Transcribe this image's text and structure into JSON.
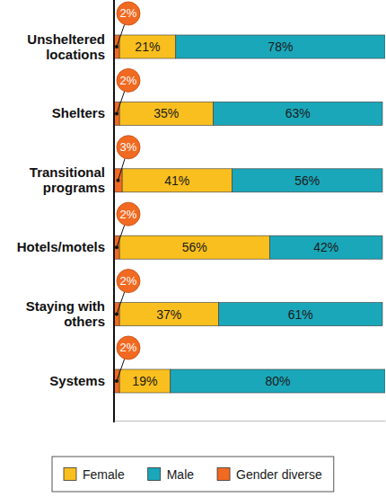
{
  "chart_data": {
    "type": "bar",
    "orientation": "horizontal",
    "stacked": true,
    "data_labels": true,
    "tick_labels": "y",
    "legend": "bottom",
    "categories": [
      "Unsheltered locations",
      "Shelters",
      "Transitional programs",
      "Hotels/motels",
      "Staying with others",
      "Systems"
    ],
    "xlim": [
      0,
      101
    ],
    "series": [
      {
        "name": "Female",
        "color": "#f9bf1e",
        "values": [
          21,
          35,
          41,
          56,
          37,
          19
        ],
        "value_labels": [
          "21%",
          "35%",
          "41%",
          "56%",
          "37%",
          "19%"
        ]
      },
      {
        "name": "Male",
        "color": "#1aa7b9",
        "values": [
          78,
          63,
          56,
          42,
          61,
          80
        ],
        "value_labels": [
          "78%",
          "63%",
          "56%",
          "42%",
          "61%",
          "80%"
        ]
      },
      {
        "name": "Gender diverse",
        "color": "#f26a21",
        "values": [
          2,
          2,
          3,
          2,
          2,
          2
        ],
        "value_labels": [
          "2%",
          "2%",
          "3%",
          "2%",
          "2%",
          "2%"
        ]
      }
    ]
  }
}
